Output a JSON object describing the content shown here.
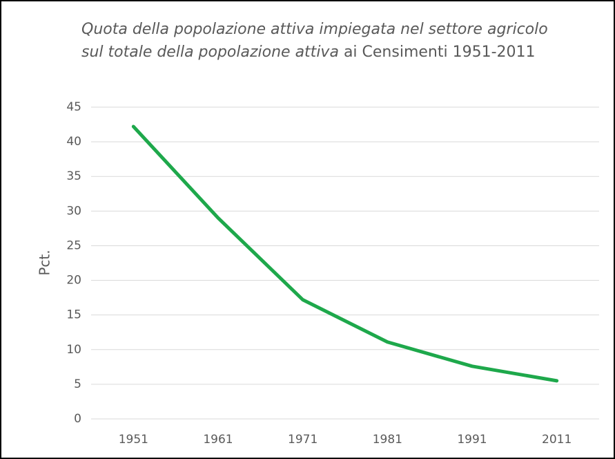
{
  "chart_data": {
    "type": "line",
    "title": [
      "Quota della popolazione attiva impiegata nel settore agricolo sul totale della popolazione attiva",
      "ai Censimenti 1951-2011"
    ],
    "y_label": "Pct.",
    "categories": [
      "1951",
      "1961",
      "1971",
      "1981",
      "1991",
      "2011"
    ],
    "series": [
      {
        "color": "#1ea84b",
        "values": [
          42.2,
          29,
          17.2,
          11.1,
          7.6,
          5.5
        ]
      }
    ],
    "ylim": [
      0,
      45
    ],
    "yticks": [
      0,
      5,
      10,
      15,
      20,
      25,
      30,
      35,
      40,
      45
    ],
    "grid": true
  }
}
